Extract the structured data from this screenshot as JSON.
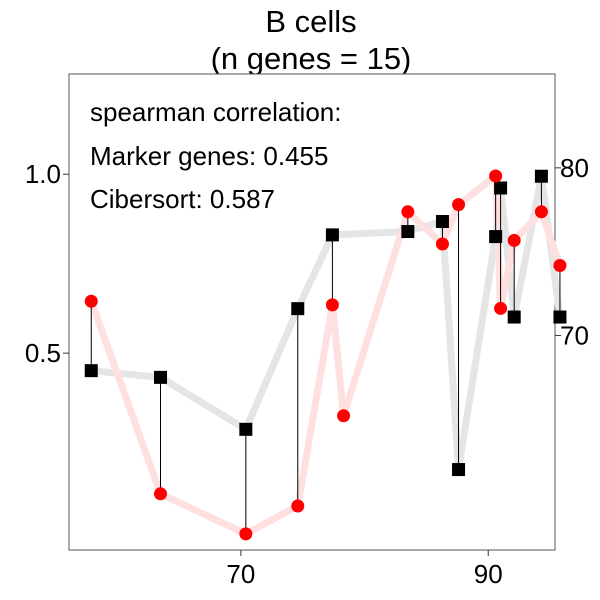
{
  "chart_data": {
    "type": "line",
    "title": "B cells",
    "subtitle": "(n genes = 15)",
    "xlabel": "",
    "ylabel": "",
    "y2label": "",
    "xlim": [
      56.1,
      95.4
    ],
    "ylim": [
      -0.05,
      1.28
    ],
    "y2lim": [
      57.2,
      85.6
    ],
    "x_ticks": [
      70,
      90
    ],
    "y_ticks": [
      0.5,
      1.0
    ],
    "y2_ticks": [
      70,
      80
    ],
    "x_tick_labels": [
      "70",
      "90"
    ],
    "y_tick_labels": [
      "0.5",
      "1.0"
    ],
    "y2_tick_labels": [
      "70",
      "80"
    ],
    "grid": false,
    "annotation": {
      "heading": "spearman correlation:",
      "line1": "Marker genes: 0.455",
      "line2": "Cibersort: 0.587"
    },
    "series": [
      {
        "axis": "left",
        "marker": "circle",
        "color": "#ff0000",
        "line_color": "#ffe0e0",
        "x": [
          57.9,
          63.5,
          70.4,
          74.6,
          77.4,
          78.3,
          83.5,
          86.3,
          87.6,
          90.6,
          91.0,
          92.1,
          94.3,
          95.8
        ],
        "values": [
          0.645,
          0.107,
          -0.005,
          0.073,
          0.635,
          0.325,
          0.895,
          0.805,
          0.915,
          0.995,
          0.625,
          0.815,
          0.895,
          0.745
        ]
      },
      {
        "axis": "right",
        "marker": "square",
        "color": "#000000",
        "line_color": "#e5e5e5",
        "x": [
          57.9,
          63.5,
          70.4,
          74.6,
          77.4,
          83.5,
          86.3,
          87.6,
          90.6,
          91.0,
          92.1,
          94.3,
          95.8
        ],
        "values": [
          67.9,
          67.5,
          64.4,
          71.6,
          76.0,
          76.2,
          76.8,
          62.0,
          75.9,
          78.8,
          71.1,
          79.5,
          71.1
        ]
      }
    ]
  }
}
